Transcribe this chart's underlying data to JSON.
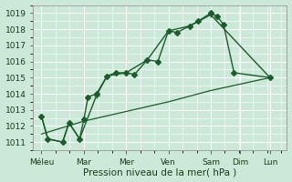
{
  "bg_color": "#cce8d8",
  "grid_color": "#b0d8c0",
  "line_color": "#1a5c2a",
  "x_labels": [
    "Méleu",
    "Mar",
    "Mer",
    "Ven",
    "Sam",
    "Dim",
    "Lun"
  ],
  "x_positions": [
    0,
    1,
    2,
    3,
    4,
    4.7,
    5.4
  ],
  "xlabel": "Pression niveau de la mer( hPa )",
  "ylim": [
    1010.5,
    1019.5
  ],
  "yticks": [
    1011,
    1012,
    1013,
    1014,
    1015,
    1016,
    1017,
    1018,
    1019
  ],
  "xlim": [
    -0.2,
    5.8
  ],
  "series1": {
    "x": [
      0,
      0.15,
      0.5,
      0.65,
      0.9,
      1.0,
      1.1,
      1.3,
      1.55,
      1.75,
      2.0,
      2.2,
      2.5,
      2.75,
      3.0,
      3.2,
      3.5,
      3.7,
      4.0,
      4.15,
      4.3,
      4.55,
      5.4
    ],
    "y": [
      1012.6,
      1011.2,
      1011.0,
      1012.2,
      1011.2,
      1012.4,
      1013.8,
      1014.0,
      1015.1,
      1015.3,
      1015.3,
      1015.2,
      1016.1,
      1016.0,
      1017.9,
      1017.8,
      1018.2,
      1018.5,
      1019.0,
      1018.8,
      1018.3,
      1015.3,
      1015.0
    ],
    "marker": "D",
    "markersize": 3,
    "linestyle": "-",
    "linewidth": 1.0
  },
  "series2": {
    "x": [
      0,
      0.15,
      0.5,
      0.65,
      0.9,
      1.3,
      1.55,
      2.0,
      2.5,
      3.0,
      3.5,
      4.0,
      5.4
    ],
    "y": [
      1012.6,
      1011.2,
      1011.0,
      1012.2,
      1011.2,
      1013.9,
      1015.1,
      1015.3,
      1016.1,
      1017.9,
      1018.2,
      1018.9,
      1015.0
    ],
    "marker": "P",
    "markersize": 4,
    "linestyle": "-",
    "linewidth": 1.0
  },
  "series3": {
    "x": [
      0,
      1.0,
      2.0,
      3.0,
      4.0,
      4.7,
      5.4
    ],
    "y": [
      1011.5,
      1012.3,
      1012.9,
      1013.5,
      1014.2,
      1014.6,
      1015.0
    ],
    "marker": null,
    "markersize": 0,
    "linestyle": "-",
    "linewidth": 0.9
  },
  "tick_fontsize": 6.5,
  "label_fontsize": 7.5
}
